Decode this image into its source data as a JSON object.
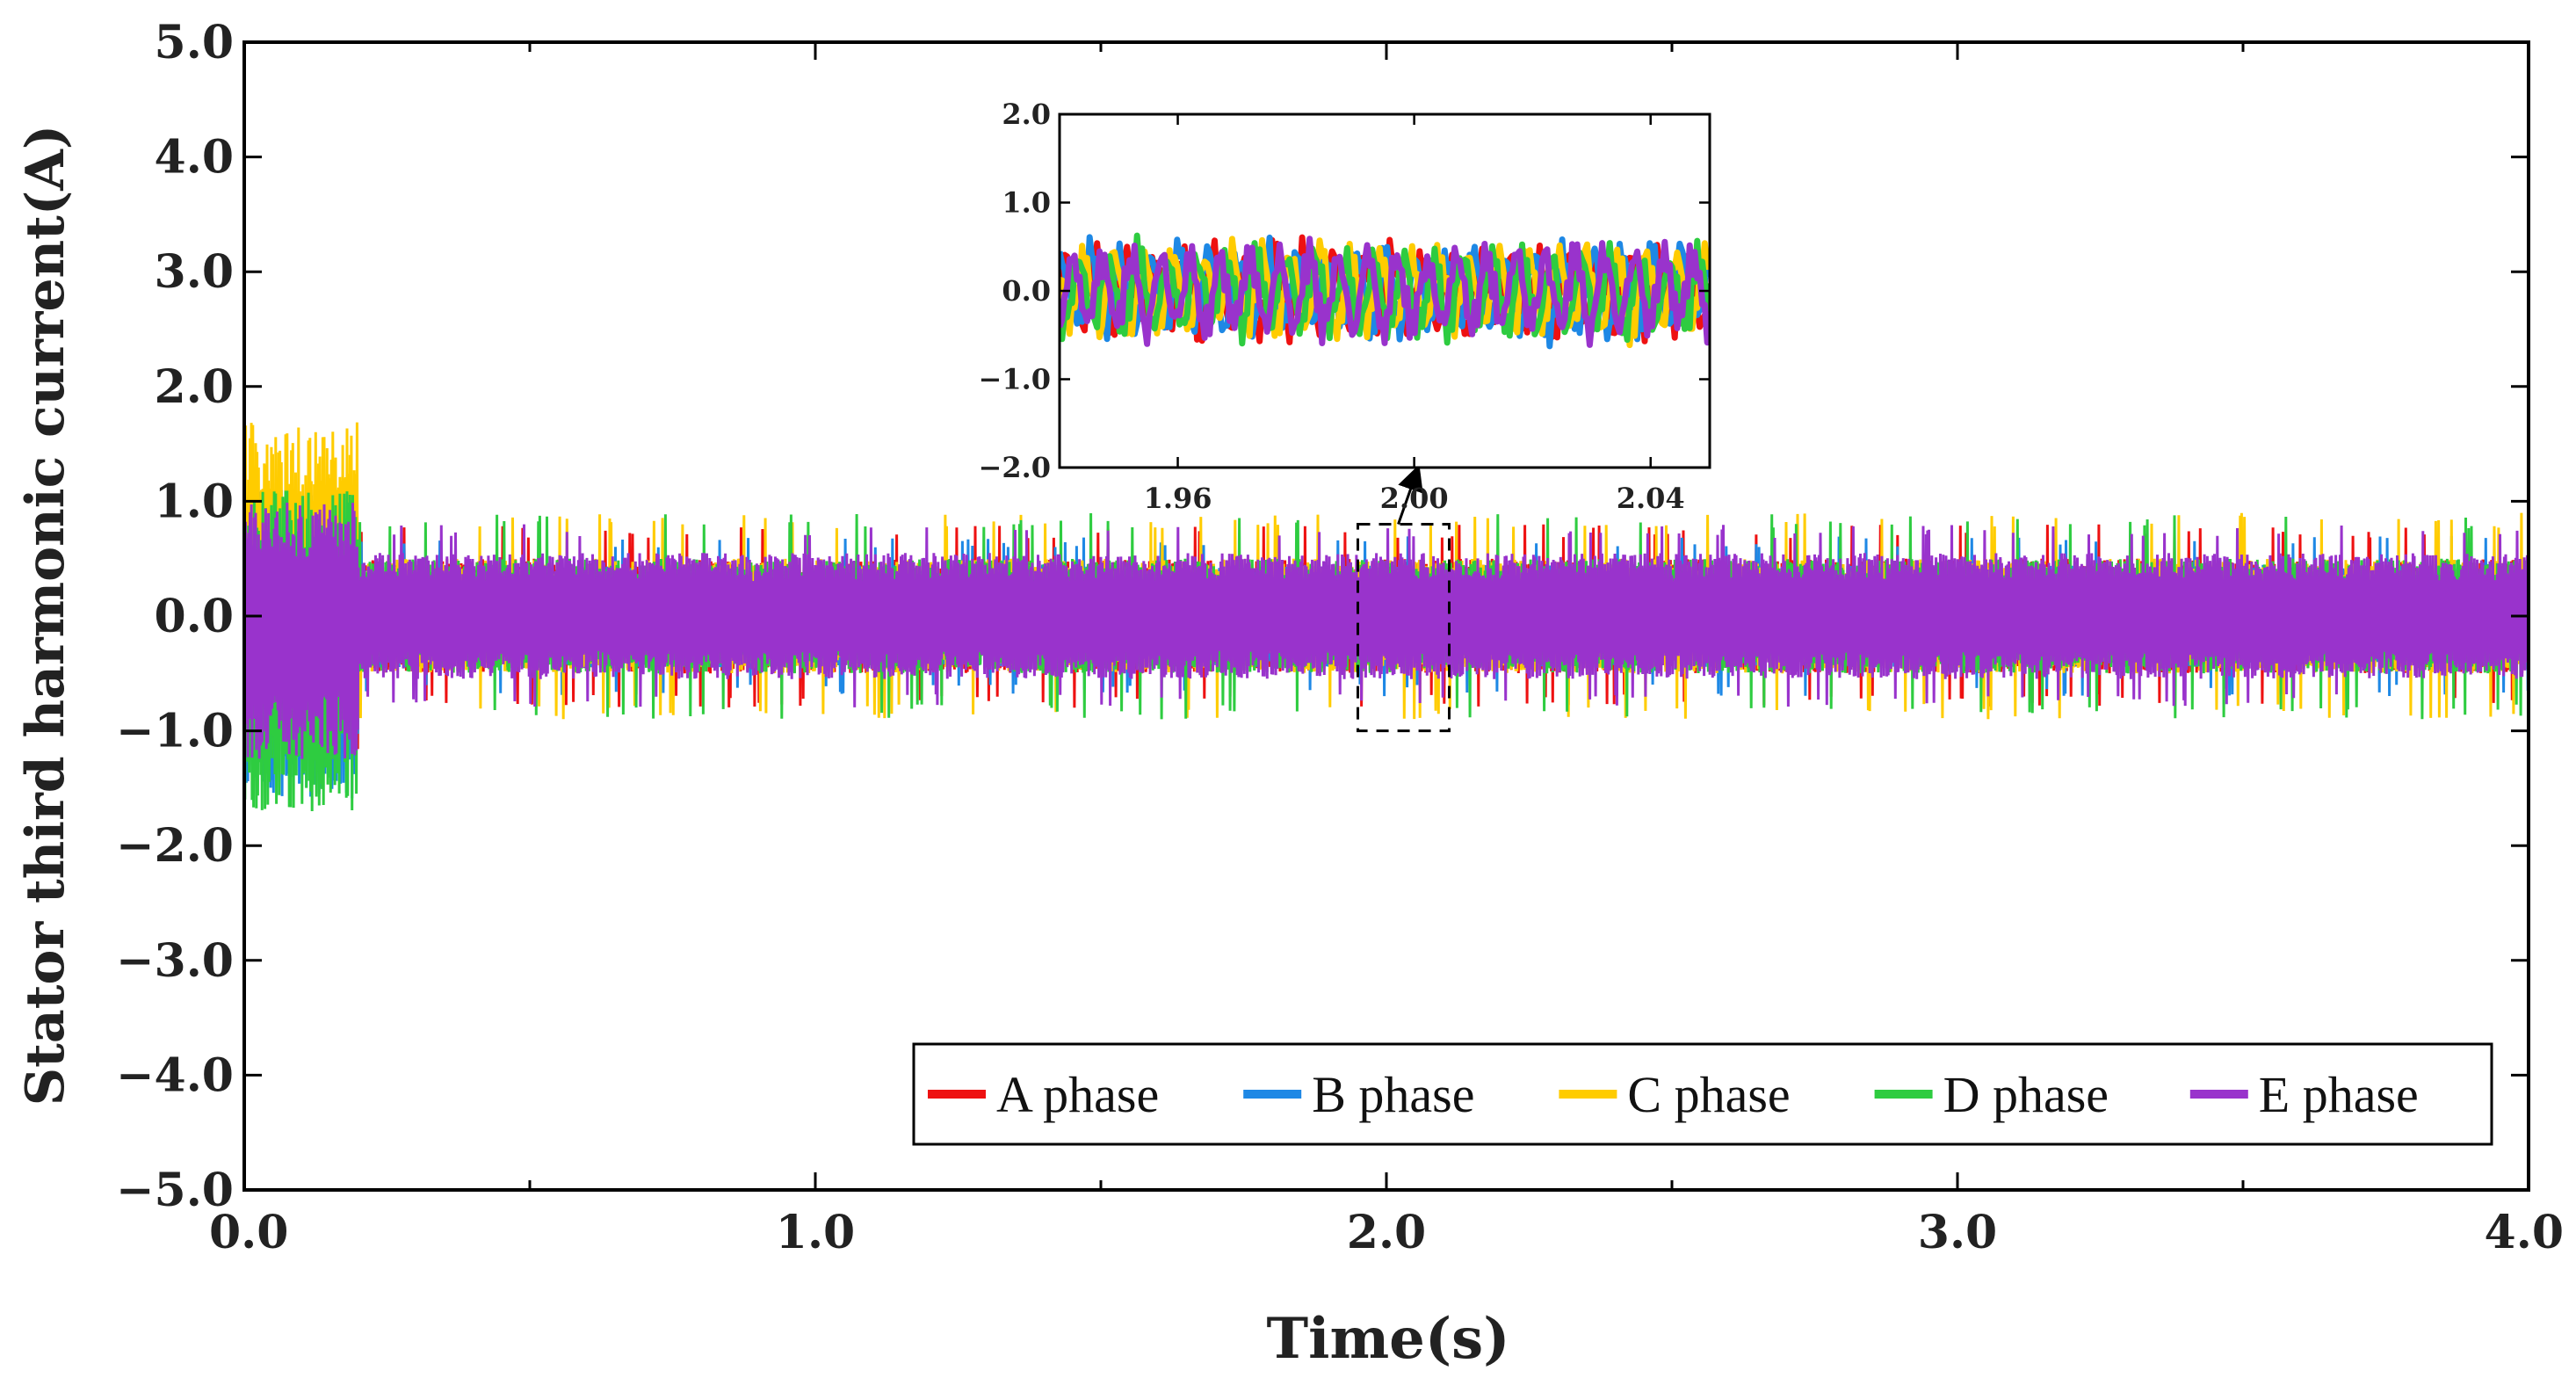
{
  "chart_data": {
    "type": "line",
    "xlabel": "Time(s)",
    "ylabel": "Stator third harmonic current(A)",
    "xlim": [
      0.0,
      4.0
    ],
    "ylim": [
      -5.0,
      5.0
    ],
    "x_major_ticks": [
      0.0,
      1.0,
      2.0,
      3.0,
      4.0
    ],
    "x_tick_labels": [
      "0.0",
      "1.0",
      "2.0",
      "3.0",
      "4.0"
    ],
    "y_major_ticks": [
      -5.0,
      -4.0,
      -3.0,
      -2.0,
      -1.0,
      0.0,
      1.0,
      2.0,
      3.0,
      4.0,
      5.0
    ],
    "y_tick_labels": [
      "−5.0",
      "−4.0",
      "−3.0",
      "−2.0",
      "−1.0",
      "0.0",
      "1.0",
      "2.0",
      "3.0",
      "4.0",
      "5.0"
    ],
    "legend_position": "bottom-right",
    "series": [
      {
        "name": "A phase",
        "color": "#ee1111",
        "steady_amplitude": 0.5,
        "peak_amplitude": 0.8,
        "transient_peak": 1.0,
        "transient_trough": -1.2
      },
      {
        "name": "B phase",
        "color": "#1e88e5",
        "steady_amplitude": 0.45,
        "peak_amplitude": 0.7,
        "transient_peak": 1.1,
        "transient_trough": -1.6
      },
      {
        "name": "C phase",
        "color": "#ffcc00",
        "steady_amplitude": 0.5,
        "peak_amplitude": 0.9,
        "transient_peak": 1.7,
        "transient_trough": -1.0
      },
      {
        "name": "D phase",
        "color": "#2ecc40",
        "steady_amplitude": 0.5,
        "peak_amplitude": 0.9,
        "transient_peak": 1.1,
        "transient_trough": -1.7
      },
      {
        "name": "E phase",
        "color": "#9933cc",
        "steady_amplitude": 0.55,
        "peak_amplitude": 0.8,
        "transient_peak": 1.0,
        "transient_trough": -1.25
      }
    ],
    "transient_end_time": 0.2,
    "zoom_region": {
      "x": [
        1.95,
        2.11
      ],
      "y": [
        -1.0,
        0.8
      ]
    },
    "inset": {
      "xlim": [
        1.94,
        2.05
      ],
      "ylim": [
        -2.0,
        2.0
      ],
      "x_major_ticks": [
        1.96,
        2.0,
        2.04
      ],
      "x_tick_labels": [
        "1.96",
        "2.00",
        "2.04"
      ],
      "y_major_ticks": [
        -2.0,
        -1.0,
        0.0,
        1.0,
        2.0
      ],
      "y_tick_labels": [
        "−2.0",
        "−1.0",
        "0.0",
        "1.0",
        "2.0"
      ],
      "signal_range": [
        -0.7,
        0.7
      ]
    }
  }
}
